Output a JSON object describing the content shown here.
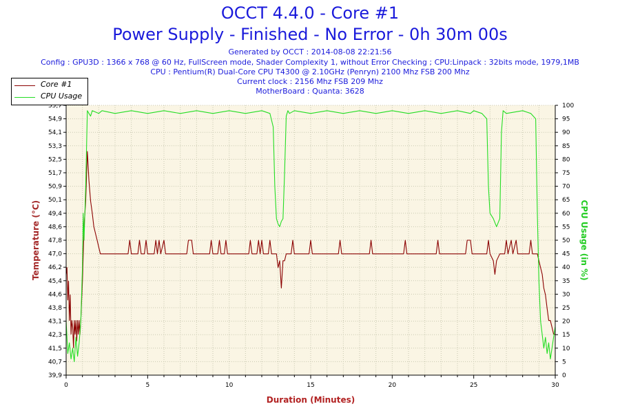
{
  "header": {
    "title": "OCCT 4.4.0 - Core #1",
    "subtitle": "Power Supply - Finished - No Error - 0h 30m 00s",
    "info_lines": [
      "Generated by OCCT : 2014-08-08 22:21:56",
      "Config : GPU3D : 1366 x 768 @ 60 Hz, FullScreen mode, Shader Complexity 1, without Error Checking ; CPU:Linpack : 32bits mode, 1979,1MB",
      "CPU : Pentium(R) Dual-Core CPU T4300 @ 2.10GHz (Penryn) 2100 Mhz FSB 200 Mhz",
      "Current clock : 2156 Mhz FSB 209 Mhz",
      "MotherBoard : Quanta: 3628"
    ]
  },
  "colors": {
    "title": "#1a1adb",
    "plot_bg": "#faf5e4",
    "grid": "#c8c8b0",
    "temp_series": "#8b0000",
    "cpu_series": "#22dd22",
    "temp_axis_label": "#a52a2a",
    "cpu_axis_label": "#22cc22",
    "x_axis_label": "#b22222"
  },
  "legend": {
    "items": [
      {
        "label": "Core #1",
        "color": "#8b0000"
      },
      {
        "label": "CPU Usage",
        "color": "#22dd22"
      }
    ]
  },
  "chart_data": {
    "type": "line",
    "xlabel": "Duration (Minutes)",
    "ylabel_left": "Temperature (°C)",
    "ylabel_right": "CPU Usage (in %)",
    "xlim": [
      0,
      30
    ],
    "ylim_left": [
      39.9,
      55.7
    ],
    "ylim_right": [
      0,
      100
    ],
    "x_ticks": [
      0,
      5,
      10,
      15,
      20,
      25,
      30
    ],
    "y_left_ticks": [
      "39,9",
      "40,7",
      "41,5",
      "42,3",
      "43,1",
      "43,8",
      "44,6",
      "45,4",
      "46,2",
      "47,0",
      "47,8",
      "48,6",
      "49,4",
      "50,1",
      "50,9",
      "51,7",
      "52,5",
      "53,3",
      "54,1",
      "54,9",
      "55,7"
    ],
    "y_right_ticks": [
      0,
      5,
      10,
      15,
      20,
      25,
      30,
      35,
      40,
      45,
      50,
      55,
      60,
      65,
      70,
      75,
      80,
      85,
      90,
      95,
      100
    ],
    "grid": "vertical-and-horizontal dotted",
    "legend_position": "top-left",
    "series": [
      {
        "name": "Core #1",
        "axis": "left",
        "points": [
          [
            0.0,
            45.8
          ],
          [
            0.05,
            46.2
          ],
          [
            0.1,
            44.3
          ],
          [
            0.15,
            45.4
          ],
          [
            0.2,
            43.1
          ],
          [
            0.25,
            44.6
          ],
          [
            0.3,
            42.3
          ],
          [
            0.35,
            43.1
          ],
          [
            0.4,
            42.7
          ],
          [
            0.45,
            41.5
          ],
          [
            0.5,
            43.1
          ],
          [
            0.55,
            42.3
          ],
          [
            0.6,
            43.1
          ],
          [
            0.65,
            41.9
          ],
          [
            0.7,
            43.1
          ],
          [
            0.75,
            42.3
          ],
          [
            0.8,
            43.1
          ],
          [
            0.85,
            42.3
          ],
          [
            0.9,
            43.1
          ],
          [
            1.0,
            45.4
          ],
          [
            1.1,
            48.6
          ],
          [
            1.2,
            50.1
          ],
          [
            1.3,
            53.0
          ],
          [
            1.4,
            51.3
          ],
          [
            1.5,
            50.1
          ],
          [
            1.6,
            49.4
          ],
          [
            1.7,
            48.6
          ],
          [
            1.8,
            48.2
          ],
          [
            1.9,
            47.8
          ],
          [
            2.0,
            47.4
          ],
          [
            2.1,
            47.0
          ],
          [
            3.8,
            47.0
          ],
          [
            3.9,
            47.8
          ],
          [
            4.0,
            47.0
          ],
          [
            4.4,
            47.0
          ],
          [
            4.5,
            47.8
          ],
          [
            4.6,
            47.0
          ],
          [
            4.8,
            47.0
          ],
          [
            4.9,
            47.8
          ],
          [
            5.0,
            47.0
          ],
          [
            5.4,
            47.0
          ],
          [
            5.5,
            47.8
          ],
          [
            5.6,
            47.0
          ],
          [
            5.7,
            47.8
          ],
          [
            5.8,
            47.0
          ],
          [
            6.0,
            47.8
          ],
          [
            6.1,
            47.0
          ],
          [
            7.4,
            47.0
          ],
          [
            7.5,
            47.8
          ],
          [
            7.7,
            47.8
          ],
          [
            7.8,
            47.0
          ],
          [
            8.8,
            47.0
          ],
          [
            8.9,
            47.8
          ],
          [
            9.0,
            47.0
          ],
          [
            9.3,
            47.0
          ],
          [
            9.4,
            47.8
          ],
          [
            9.5,
            47.0
          ],
          [
            9.7,
            47.0
          ],
          [
            9.8,
            47.8
          ],
          [
            9.9,
            47.0
          ],
          [
            11.2,
            47.0
          ],
          [
            11.3,
            47.8
          ],
          [
            11.4,
            47.0
          ],
          [
            11.7,
            47.0
          ],
          [
            11.8,
            47.8
          ],
          [
            11.9,
            47.0
          ],
          [
            12.0,
            47.8
          ],
          [
            12.1,
            47.0
          ],
          [
            12.4,
            47.0
          ],
          [
            12.5,
            47.8
          ],
          [
            12.6,
            47.0
          ],
          [
            12.9,
            47.0
          ],
          [
            13.0,
            46.2
          ],
          [
            13.1,
            46.6
          ],
          [
            13.2,
            45.0
          ],
          [
            13.3,
            46.6
          ],
          [
            13.4,
            46.6
          ],
          [
            13.5,
            47.0
          ],
          [
            13.8,
            47.0
          ],
          [
            13.9,
            47.8
          ],
          [
            14.0,
            47.0
          ],
          [
            14.9,
            47.0
          ],
          [
            15.0,
            47.8
          ],
          [
            15.1,
            47.0
          ],
          [
            16.7,
            47.0
          ],
          [
            16.8,
            47.8
          ],
          [
            16.9,
            47.0
          ],
          [
            18.6,
            47.0
          ],
          [
            18.7,
            47.8
          ],
          [
            18.8,
            47.0
          ],
          [
            20.7,
            47.0
          ],
          [
            20.8,
            47.8
          ],
          [
            20.9,
            47.0
          ],
          [
            22.7,
            47.0
          ],
          [
            22.8,
            47.8
          ],
          [
            22.9,
            47.0
          ],
          [
            24.5,
            47.0
          ],
          [
            24.6,
            47.8
          ],
          [
            24.8,
            47.8
          ],
          [
            24.9,
            47.0
          ],
          [
            25.8,
            47.0
          ],
          [
            25.9,
            47.8
          ],
          [
            26.0,
            47.0
          ],
          [
            26.2,
            46.6
          ],
          [
            26.3,
            45.8
          ],
          [
            26.4,
            46.6
          ],
          [
            26.6,
            47.0
          ],
          [
            26.9,
            47.0
          ],
          [
            27.0,
            47.8
          ],
          [
            27.1,
            47.0
          ],
          [
            27.3,
            47.8
          ],
          [
            27.4,
            47.0
          ],
          [
            27.6,
            47.8
          ],
          [
            27.7,
            47.0
          ],
          [
            28.4,
            47.0
          ],
          [
            28.5,
            47.8
          ],
          [
            28.6,
            47.0
          ],
          [
            28.9,
            47.0
          ],
          [
            29.0,
            46.6
          ],
          [
            29.1,
            46.2
          ],
          [
            29.2,
            45.8
          ],
          [
            29.3,
            45.0
          ],
          [
            29.4,
            44.6
          ],
          [
            29.5,
            43.8
          ],
          [
            29.6,
            43.1
          ],
          [
            29.7,
            43.1
          ],
          [
            29.8,
            42.7
          ],
          [
            29.9,
            42.3
          ],
          [
            30.0,
            42.3
          ]
        ]
      },
      {
        "name": "CPU Usage",
        "axis": "right",
        "points": [
          [
            0.0,
            20
          ],
          [
            0.1,
            8
          ],
          [
            0.2,
            12
          ],
          [
            0.3,
            6
          ],
          [
            0.4,
            10
          ],
          [
            0.5,
            5
          ],
          [
            0.6,
            14
          ],
          [
            0.7,
            7
          ],
          [
            0.8,
            12
          ],
          [
            0.9,
            20
          ],
          [
            1.0,
            40
          ],
          [
            1.05,
            60
          ],
          [
            1.1,
            50
          ],
          [
            1.2,
            70
          ],
          [
            1.3,
            98
          ],
          [
            1.4,
            97
          ],
          [
            1.5,
            96
          ],
          [
            1.6,
            98
          ],
          [
            2.0,
            97
          ],
          [
            2.2,
            98
          ],
          [
            3.0,
            97
          ],
          [
            4.0,
            98
          ],
          [
            5.0,
            97
          ],
          [
            6.0,
            98
          ],
          [
            7.0,
            97
          ],
          [
            8.0,
            98
          ],
          [
            9.0,
            97
          ],
          [
            10.0,
            98
          ],
          [
            11.0,
            97
          ],
          [
            12.0,
            98
          ],
          [
            12.5,
            97
          ],
          [
            12.7,
            92
          ],
          [
            12.8,
            70
          ],
          [
            12.9,
            58
          ],
          [
            13.0,
            56
          ],
          [
            13.1,
            55
          ],
          [
            13.2,
            57
          ],
          [
            13.3,
            58
          ],
          [
            13.4,
            75
          ],
          [
            13.5,
            96
          ],
          [
            13.6,
            98
          ],
          [
            13.7,
            97
          ],
          [
            14.0,
            98
          ],
          [
            15.0,
            97
          ],
          [
            16.0,
            98
          ],
          [
            17.0,
            97
          ],
          [
            18.0,
            98
          ],
          [
            19.0,
            97
          ],
          [
            20.0,
            98
          ],
          [
            21.0,
            97
          ],
          [
            22.0,
            98
          ],
          [
            23.0,
            97
          ],
          [
            24.0,
            98
          ],
          [
            24.8,
            97
          ],
          [
            25.0,
            98
          ],
          [
            25.5,
            97
          ],
          [
            25.8,
            95
          ],
          [
            25.9,
            70
          ],
          [
            26.0,
            60
          ],
          [
            26.2,
            58
          ],
          [
            26.4,
            55
          ],
          [
            26.6,
            58
          ],
          [
            26.7,
            90
          ],
          [
            26.8,
            98
          ],
          [
            27.0,
            97
          ],
          [
            28.0,
            98
          ],
          [
            28.5,
            97
          ],
          [
            28.8,
            95
          ],
          [
            28.9,
            60
          ],
          [
            29.0,
            35
          ],
          [
            29.1,
            20
          ],
          [
            29.2,
            15
          ],
          [
            29.3,
            10
          ],
          [
            29.4,
            14
          ],
          [
            29.5,
            8
          ],
          [
            29.6,
            12
          ],
          [
            29.7,
            6
          ],
          [
            29.8,
            10
          ],
          [
            29.9,
            14
          ],
          [
            30.0,
            18
          ]
        ]
      }
    ]
  }
}
